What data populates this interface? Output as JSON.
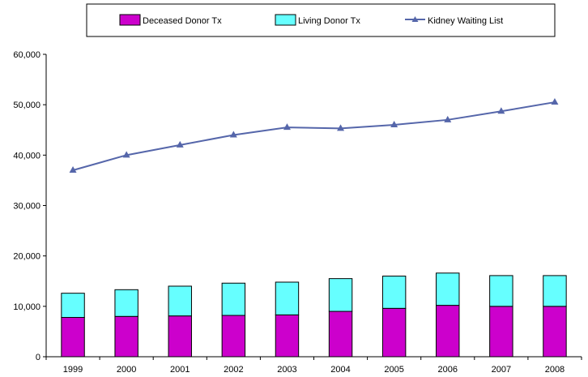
{
  "chart_data": {
    "type": "bar",
    "categories": [
      "1999",
      "2000",
      "2001",
      "2002",
      "2003",
      "2004",
      "2005",
      "2006",
      "2007",
      "2008"
    ],
    "series": [
      {
        "name": "Deceased Donor Tx",
        "kind": "stacked-bar",
        "color": "#cc00cc",
        "values": [
          7800,
          8000,
          8100,
          8200,
          8300,
          9000,
          9600,
          10200,
          10000,
          10000
        ]
      },
      {
        "name": "Living Donor Tx",
        "kind": "stacked-bar",
        "color": "#66ffff",
        "values": [
          4800,
          5300,
          5900,
          6400,
          6500,
          6500,
          6400,
          6400,
          6100,
          6100
        ]
      },
      {
        "name": "Kidney Waiting List",
        "kind": "line",
        "color": "#5566aa",
        "values": [
          37000,
          40000,
          42000,
          44000,
          45500,
          45300,
          46000,
          47000,
          48700,
          50500
        ]
      }
    ],
    "ylim": [
      0,
      60000
    ],
    "yticks": [
      "0",
      "10,000",
      "20,000",
      "30,000",
      "40,000",
      "50,000",
      "60,000"
    ],
    "ytick_values": [
      0,
      10000,
      20000,
      30000,
      40000,
      50000,
      60000
    ],
    "legend_position": "top",
    "grid": false
  }
}
